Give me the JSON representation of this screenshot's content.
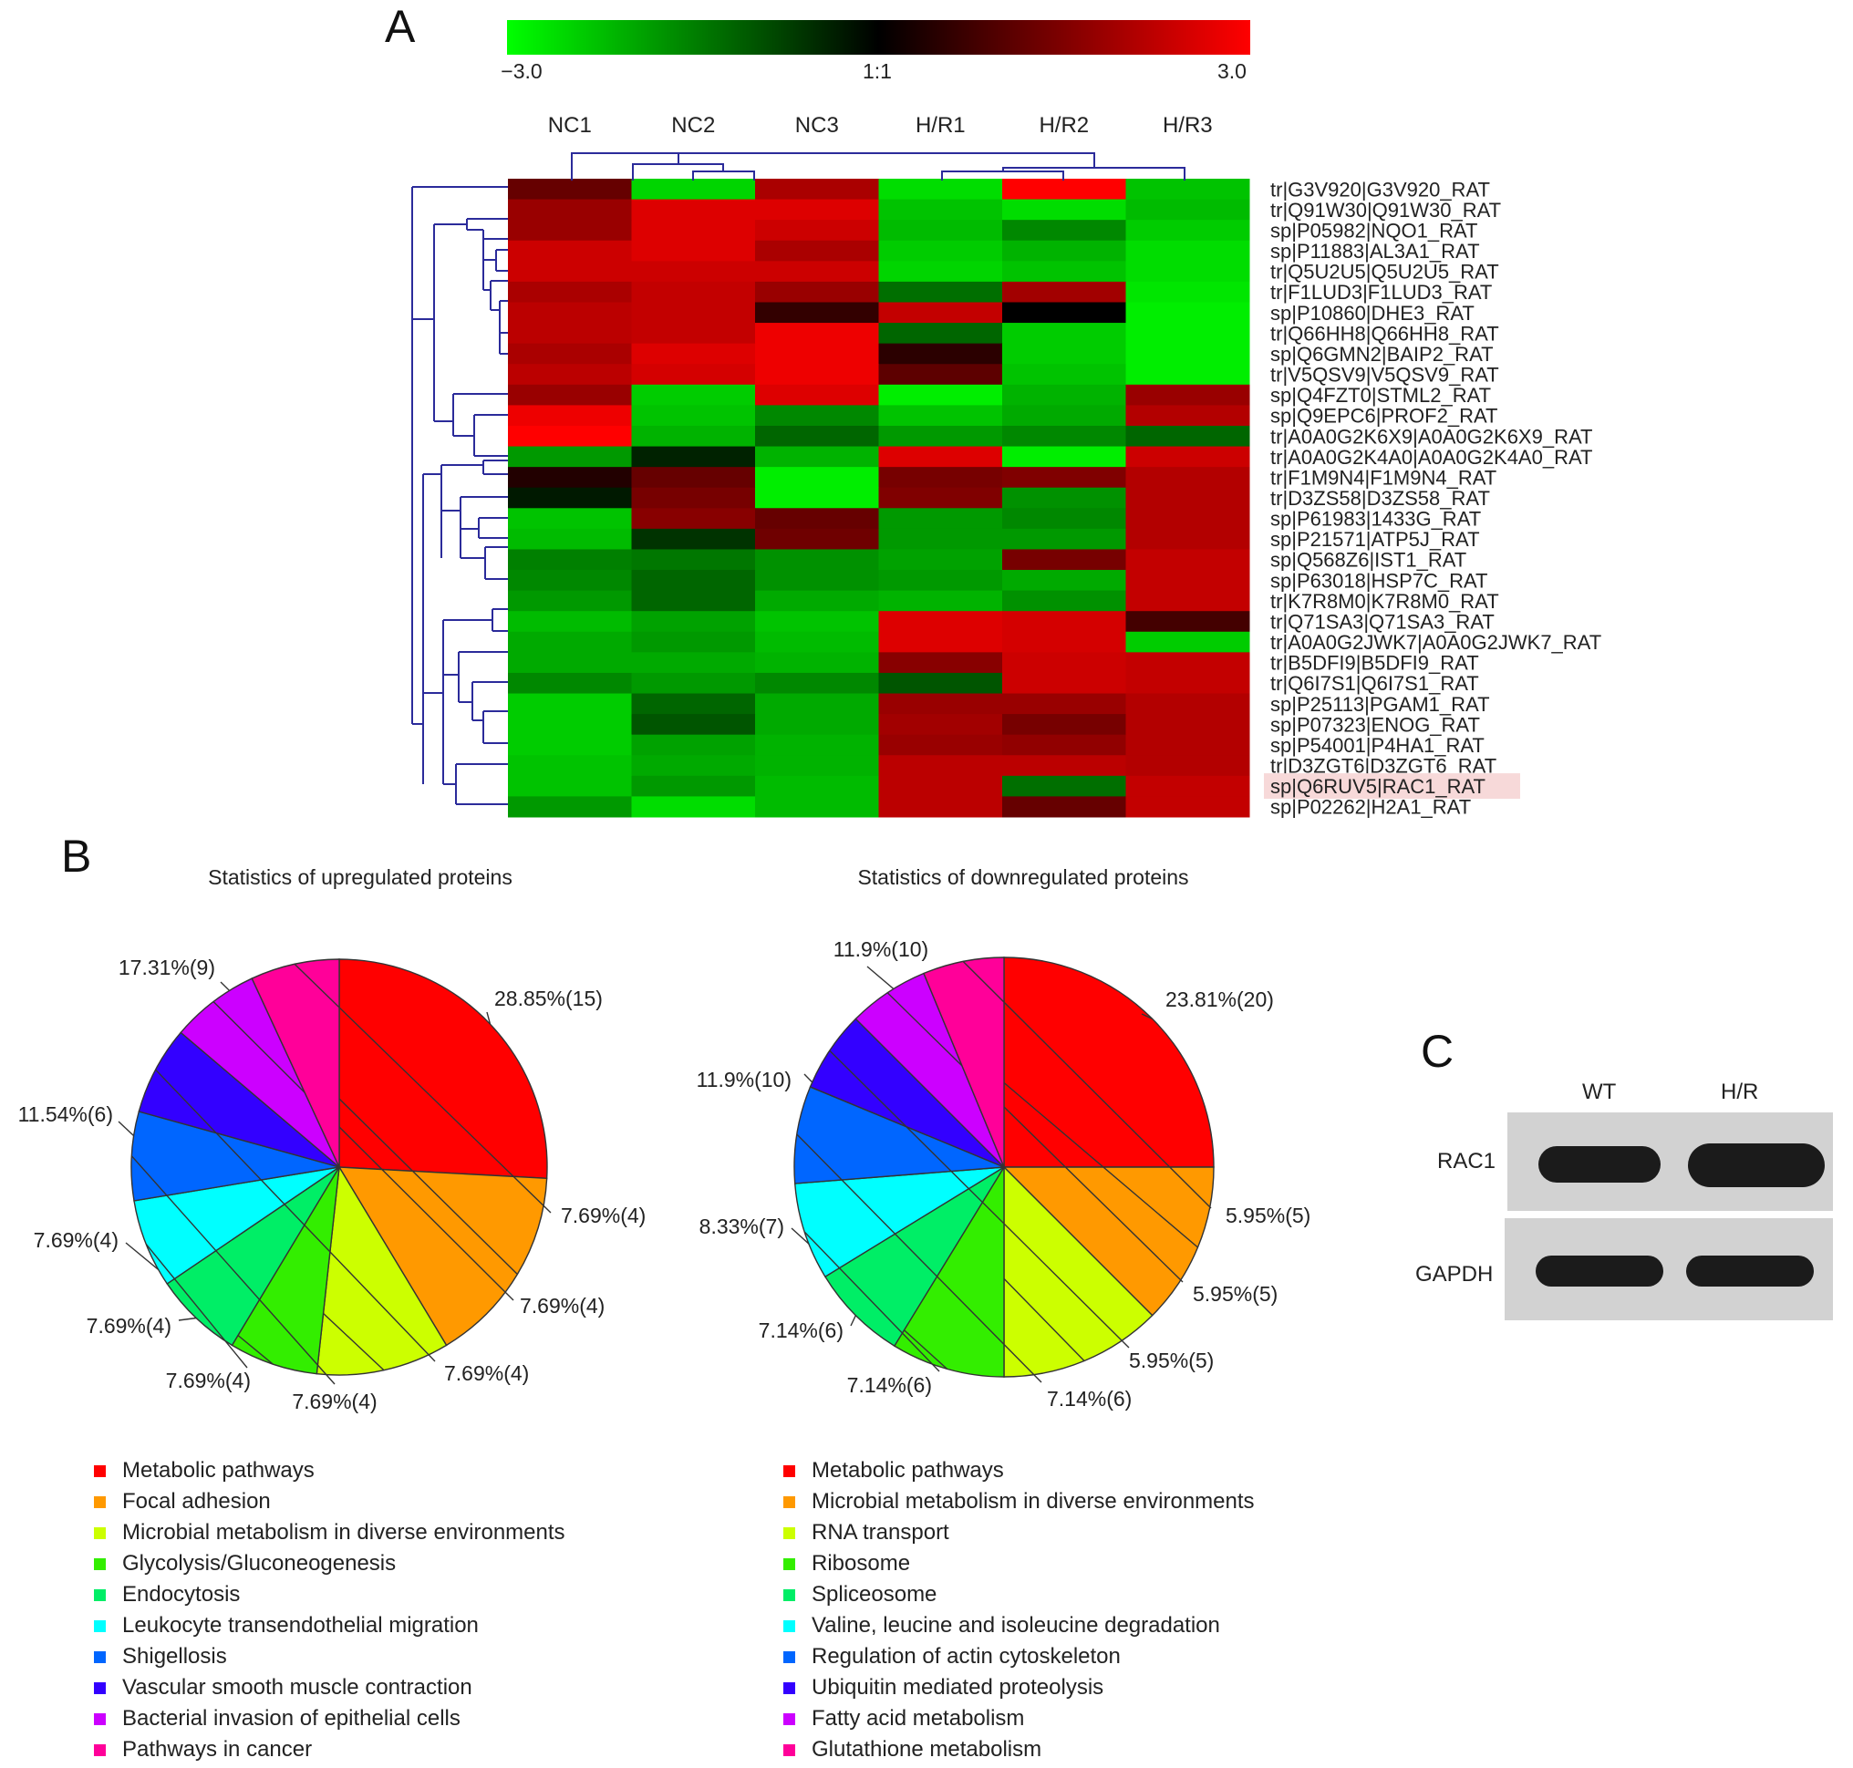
{
  "panels": {
    "a": "A",
    "b": "B",
    "c": "C"
  },
  "chart_data": [
    {
      "type": "heatmap",
      "panel": "A",
      "colorbar": {
        "min": -3.0,
        "mid": "1:1",
        "max": 3.0,
        "min_label": "−3.0",
        "mid_label": "1:1",
        "max_label": "3.0",
        "colors": [
          "#00ff00",
          "#000000",
          "#ff0000"
        ]
      },
      "columns": [
        "NC1",
        "NC2",
        "NC3",
        "H/R1",
        "H/R2",
        "H/R3"
      ],
      "rows": [
        "tr|G3V920|G3V920_RAT",
        "tr|Q91W30|Q91W30_RAT",
        "sp|P05982|NQO1_RAT",
        "sp|P11883|AL3A1_RAT",
        "tr|Q5U2U5|Q5U2U5_RAT",
        "tr|F1LUD3|F1LUD3_RAT",
        "sp|P10860|DHE3_RAT",
        "tr|Q66HH8|Q66HH8_RAT",
        "sp|Q6GMN2|BAIP2_RAT",
        "tr|V5QSV9|V5QSV9_RAT",
        "sp|Q4FZT0|STML2_RAT",
        "sp|Q9EPC6|PROF2_RAT",
        "tr|A0A0G2K6X9|A0A0G2K6X9_RAT",
        "tr|A0A0G2K4A0|A0A0G2K4A0_RAT",
        "tr|F1M9N4|F1M9N4_RAT",
        "tr|D3ZS58|D3ZS58_RAT",
        "sp|P61983|1433G_RAT",
        "sp|P21571|ATP5J_RAT",
        "sp|Q568Z6|IST1_RAT",
        "sp|P63018|HSP7C_RAT",
        "tr|K7R8M0|K7R8M0_RAT",
        "tr|Q71SA3|Q71SA3_RAT",
        "tr|A0A0G2JWK7|A0A0G2JWK7_RAT",
        "tr|B5DFI9|B5DFI9_RAT",
        "tr|Q6I7S1|Q6I7S1_RAT",
        "sp|P25113|PGAM1_RAT",
        "sp|P07323|ENOG_RAT",
        "sp|P54001|P4HA1_RAT",
        "tr|D3ZGT6|D3ZGT6_RAT",
        "sp|Q6RUV5|RAC1_RAT",
        "sp|P02262|H2A1_RAT"
      ],
      "highlighted_row": "sp|Q6RUV5|RAC1_RAT",
      "values": [
        [
          1.2,
          -2.5,
          2.0,
          -2.6,
          3.0,
          -2.3
        ],
        [
          1.8,
          2.6,
          2.6,
          -2.3,
          -2.6,
          -2.2
        ],
        [
          1.8,
          2.6,
          2.4,
          -2.2,
          -1.6,
          -2.4
        ],
        [
          2.4,
          2.6,
          2.0,
          -2.4,
          -2.1,
          -2.6
        ],
        [
          2.4,
          2.4,
          2.4,
          -2.5,
          -2.3,
          -2.6
        ],
        [
          2.0,
          2.3,
          1.8,
          -1.3,
          1.9,
          -2.7
        ],
        [
          2.2,
          2.3,
          0.6,
          2.3,
          0.0,
          -2.8
        ],
        [
          2.2,
          2.3,
          2.8,
          -1.2,
          -2.4,
          -2.8
        ],
        [
          2.0,
          2.6,
          2.8,
          0.5,
          -2.4,
          -2.8
        ],
        [
          2.2,
          2.5,
          2.8,
          1.1,
          -2.3,
          -2.8
        ],
        [
          1.8,
          -2.4,
          2.6,
          -2.8,
          -2.1,
          1.8
        ],
        [
          2.8,
          -2.3,
          -1.6,
          -2.3,
          -2.0,
          2.1
        ],
        [
          3.0,
          -2.1,
          -1.2,
          -1.8,
          -1.6,
          -1.2
        ],
        [
          -1.8,
          -0.4,
          -2.1,
          2.6,
          -2.8,
          2.4
        ],
        [
          0.4,
          1.2,
          -2.8,
          1.4,
          1.5,
          2.1
        ],
        [
          -0.3,
          1.4,
          -2.8,
          1.5,
          -1.7,
          2.1
        ],
        [
          -2.3,
          1.6,
          1.2,
          -1.8,
          -1.6,
          2.1
        ],
        [
          -2.2,
          -0.6,
          1.3,
          -1.8,
          -1.8,
          2.1
        ],
        [
          -1.5,
          -1.4,
          -1.7,
          -1.9,
          1.4,
          2.3
        ],
        [
          -1.6,
          -1.2,
          -1.7,
          -1.8,
          -2.0,
          2.3
        ],
        [
          -1.8,
          -1.2,
          -2.0,
          -2.1,
          -1.7,
          2.3
        ],
        [
          -2.2,
          -1.9,
          -2.3,
          2.6,
          2.5,
          0.8
        ],
        [
          -2.0,
          -1.8,
          -2.2,
          2.6,
          2.5,
          -2.4
        ],
        [
          -2.0,
          -2.0,
          -2.1,
          1.6,
          2.4,
          2.3
        ],
        [
          -1.6,
          -1.8,
          -1.6,
          -1.0,
          2.4,
          2.3
        ],
        [
          -2.4,
          -1.2,
          -2.0,
          1.8,
          1.8,
          2.1
        ],
        [
          -2.4,
          -1.0,
          -2.0,
          1.9,
          1.4,
          2.1
        ],
        [
          -2.4,
          -1.9,
          -2.1,
          1.8,
          1.7,
          2.1
        ],
        [
          -2.3,
          -2.0,
          -2.1,
          2.2,
          2.2,
          2.1
        ],
        [
          -2.3,
          -1.8,
          -2.2,
          2.2,
          -1.3,
          2.3
        ],
        [
          -1.8,
          -2.6,
          -2.2,
          2.2,
          1.2,
          2.3
        ]
      ]
    },
    {
      "type": "pie",
      "panel": "B",
      "title": "Statistics of upregulated proteins",
      "categories": [
        "Metabolic pathways",
        "Focal adhesion",
        "Microbial metabolism in diverse environments",
        "Glycolysis/Gluconeogenesis",
        "Endocytosis",
        "Leukocyte transendothelial migration",
        "Shigellosis",
        "Vascular smooth muscle contraction",
        "Bacterial invasion of epithelial cells",
        "Pathways in cancer"
      ],
      "values": [
        15,
        9,
        6,
        4,
        4,
        4,
        4,
        4,
        4,
        4
      ],
      "labels": [
        "28.85%(15)",
        "17.31%(9)",
        "11.54%(6)",
        "7.69%(4)",
        "7.69%(4)",
        "7.69%(4)",
        "7.69%(4)",
        "7.69%(4)",
        "7.69%(4)",
        "7.69%(4)"
      ],
      "colors": [
        "#ff0000",
        "#ff9900",
        "#ccff00",
        "#33ee00",
        "#00ee66",
        "#00ffff",
        "#0066ff",
        "#3300ff",
        "#cc00ff",
        "#ff0099"
      ]
    },
    {
      "type": "pie",
      "panel": "B",
      "title": "Statistics of downregulated proteins",
      "categories": [
        "Metabolic pathways",
        "Microbial metabolism in diverse environments",
        "RNA transport",
        "Ribosome",
        "Spliceosome",
        "Valine, leucine and isoleucine degradation",
        "Regulation of actin cytoskeleton",
        "Ubiquitin mediated proteolysis",
        "Fatty acid metabolism",
        "Glutathione metabolism"
      ],
      "values": [
        20,
        10,
        10,
        7,
        6,
        6,
        6,
        5,
        5,
        5
      ],
      "labels": [
        "23.81%(20)",
        "11.9%(10)",
        "11.9%(10)",
        "8.33%(7)",
        "7.14%(6)",
        "7.14%(6)",
        "7.14%(6)",
        "5.95%(5)",
        "5.95%(5)",
        "5.95%(5)"
      ],
      "colors": [
        "#ff0000",
        "#ff9900",
        "#ccff00",
        "#33ee00",
        "#00ee66",
        "#00ffff",
        "#0066ff",
        "#3300ff",
        "#cc00ff",
        "#ff0099"
      ]
    }
  ],
  "western_blot": {
    "lanes": [
      "WT",
      "H/R"
    ],
    "rows": [
      {
        "label": "RAC1",
        "intensities": [
          0.9,
          1.0
        ]
      },
      {
        "label": "GAPDH",
        "intensities": [
          1.0,
          1.0
        ]
      }
    ]
  }
}
